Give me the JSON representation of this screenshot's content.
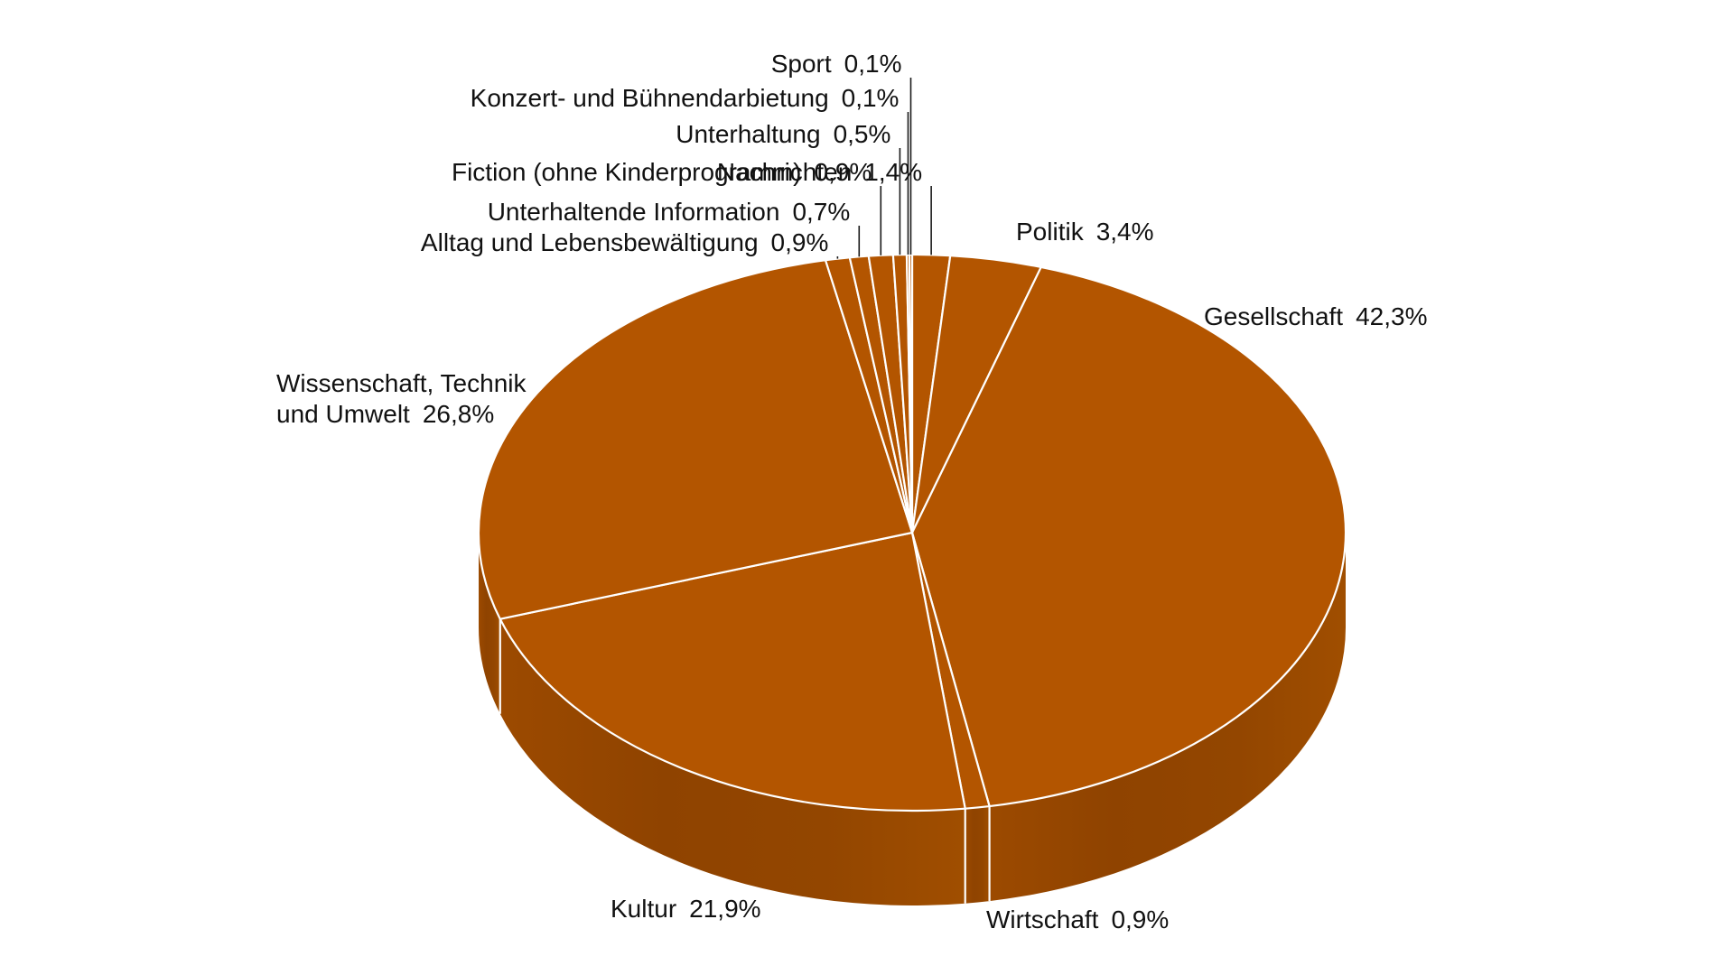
{
  "chart_data": {
    "type": "pie",
    "style": "3d",
    "title": "",
    "slices": [
      {
        "name": "Nachrichten",
        "value": 1.4,
        "value_label": "1,4%"
      },
      {
        "name": "Politik",
        "value": 3.4,
        "value_label": "3,4%"
      },
      {
        "name": "Gesellschaft",
        "value": 42.3,
        "value_label": "42,3%"
      },
      {
        "name": "Wirtschaft",
        "value": 0.9,
        "value_label": "0,9%"
      },
      {
        "name": "Kultur",
        "value": 21.9,
        "value_label": "21,9%"
      },
      {
        "name": "Wissenschaft, Technik und Umwelt",
        "lines": [
          "Wissenschaft, Technik",
          "und Umwelt"
        ],
        "value": 26.8,
        "value_label": "26,8%"
      },
      {
        "name": "Alltag und Lebensbewältigung",
        "value": 0.9,
        "value_label": "0,9%"
      },
      {
        "name": "Unterhaltende Information",
        "value": 0.7,
        "value_label": "0,7%"
      },
      {
        "name": "Fiction (ohne Kinderprogramm)",
        "value": 0.9,
        "value_label": "0,9%"
      },
      {
        "name": "Unterhaltung",
        "value": 0.5,
        "value_label": "0,5%"
      },
      {
        "name": "Konzert- und Bühnendarbietung",
        "value": 0.1,
        "value_label": "0,1%"
      },
      {
        "name": "Sport",
        "value": 0.1,
        "value_label": "0,1%"
      }
    ],
    "colors": {
      "top": "#b35500",
      "side": "#9a4a00",
      "side_dark": "#8c4200",
      "separator": "#ffffff",
      "text": "#111111"
    }
  }
}
